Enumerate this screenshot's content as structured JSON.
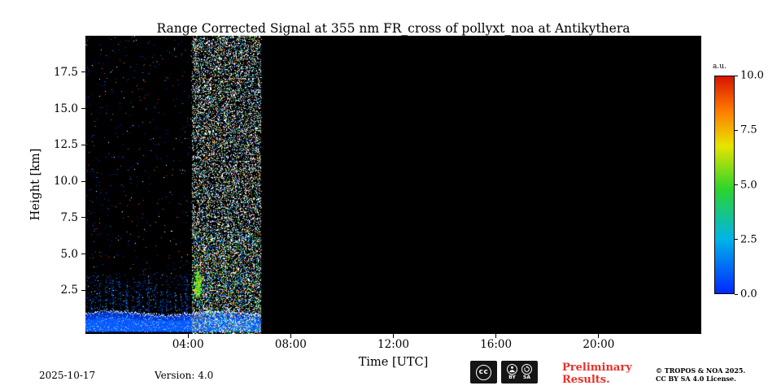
{
  "footer": {
    "date": "2025-10-17",
    "version": "Version: 4.0",
    "preliminary_line1": "Preliminary",
    "preliminary_line2": "Results.",
    "preliminary_color": "#e8302a",
    "copyright_line1": "© TROPOS & NOA 2025.",
    "copyright_line2": "CC BY SA 4.0 License."
  },
  "cc_badge": {
    "cc_label": "cc",
    "by_label": "BY",
    "sa_label": "SA"
  },
  "chart_data": {
    "type": "heatmap",
    "title": "Range Corrected Signal at 355 nm FR_cross of pollyxt_noa at Antikythera",
    "xlabel": "Time [UTC]",
    "ylabel": "Height [km]",
    "x_range_hours": [
      0,
      24
    ],
    "y_range_km": [
      -0.5,
      20
    ],
    "x_ticks": [
      {
        "hour": 4,
        "label": "04:00"
      },
      {
        "hour": 8,
        "label": "08:00"
      },
      {
        "hour": 12,
        "label": "12:00"
      },
      {
        "hour": 16,
        "label": "16:00"
      },
      {
        "hour": 20,
        "label": "20:00"
      }
    ],
    "y_ticks": [
      {
        "km": 2.5,
        "label": "2.5"
      },
      {
        "km": 5,
        "label": "5.0"
      },
      {
        "km": 7.5,
        "label": "7.5"
      },
      {
        "km": 10,
        "label": "10.0"
      },
      {
        "km": 12.5,
        "label": "12.5"
      },
      {
        "km": 15,
        "label": "15.0"
      },
      {
        "km": 17.5,
        "label": "17.5"
      }
    ],
    "no_data_color": "#000000",
    "measurement_end_hour": 6.85,
    "colorbar": {
      "label": "a.u.",
      "min": 0,
      "max": 10,
      "ticks": [
        {
          "value": 10,
          "label": "10.0"
        },
        {
          "value": 7.5,
          "label": "7.5"
        },
        {
          "value": 5,
          "label": "5.0"
        },
        {
          "value": 2.5,
          "label": "2.5"
        },
        {
          "value": 0,
          "label": "0.0"
        }
      ],
      "gradient_stops": [
        [
          "#0028ff",
          0
        ],
        [
          "#00b4e8",
          25
        ],
        [
          "#2cd42c",
          48
        ],
        [
          "#e8e400",
          68
        ],
        [
          "#ff7c00",
          84
        ],
        [
          "#d81400",
          100
        ]
      ]
    },
    "regions": [
      {
        "kind": "surface_layer",
        "t_start": 0,
        "t_end": 6.85,
        "top_km": 1.0,
        "note": "strong near-surface aerosol layer (blue, ~0-3 a.u.) with bright undulating crest near 0.8-1 km"
      },
      {
        "kind": "sparse_noise",
        "t_start": 0,
        "t_end": 4.15,
        "h_min": 0,
        "h_max": 20,
        "density": 0.012,
        "note": "sparse background speckle (blue/white/red) during nighttime measurement"
      },
      {
        "kind": "low_extra_noise",
        "t_start": 0,
        "t_end": 4.15,
        "h_min": 1,
        "h_max": 3.6,
        "density": 0.05,
        "note": "denser weak blue signal below ~3.5 km"
      },
      {
        "kind": "streaks",
        "times_h": [
          0.25,
          0.55,
          0.8,
          1.05,
          1.35,
          1.6,
          1.85,
          2.1,
          2.45,
          2.7,
          2.95,
          3.2,
          3.5,
          3.75,
          3.95
        ],
        "top_km_min": 1.3,
        "top_km_max": 3.4,
        "note": "weak low-level blue signal columns up to ~3 km"
      },
      {
        "kind": "dense_noise",
        "t_start": 4.15,
        "t_end": 6.85,
        "h_min": -0.5,
        "h_max": 20,
        "density": 0.4,
        "note": "daylight noise-dominated band, dense white/colored speckle over full height"
      },
      {
        "kind": "colored_noise",
        "t_start": 4.15,
        "t_end": 6.85,
        "h_min": -0.5,
        "h_max": 6.5,
        "density": 0.17,
        "note": "more colored (blue/green/orange) speckle in lower part of noise band"
      },
      {
        "kind": "plume",
        "t_center": 4.38,
        "h_center_km": 2.9,
        "t_sigma_h": 0.07,
        "h_sigma_km": 0.45,
        "dots": 280,
        "note": "small green/yellow elevated feature near 04:20 UTC at 2.5-3.5 km"
      }
    ]
  }
}
